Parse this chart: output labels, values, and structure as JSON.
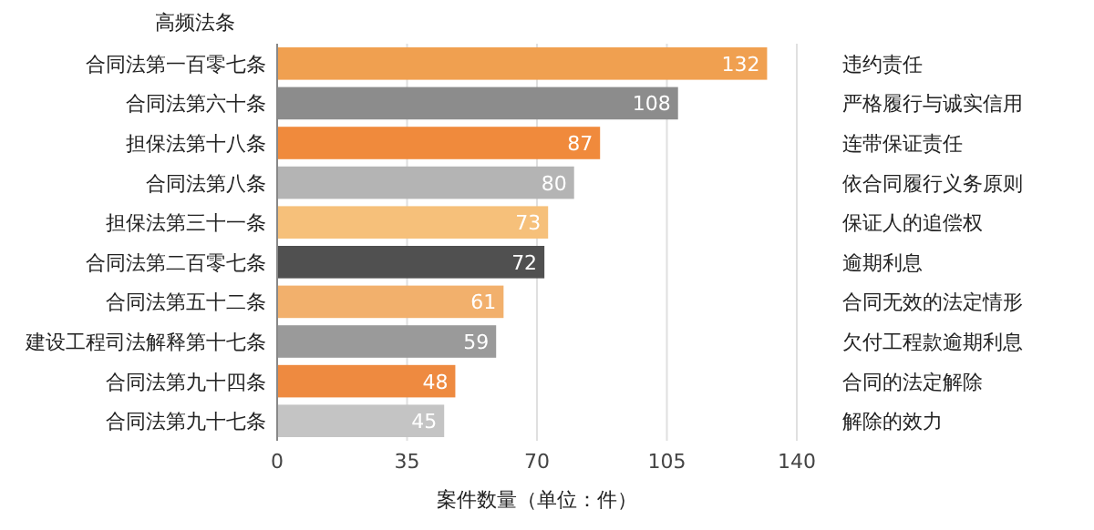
{
  "chart_data": {
    "type": "bar",
    "orientation": "horizontal",
    "ylabel": "高频法条",
    "xlabel": "案件数量（单位：件）",
    "categories": [
      "合同法第一百零七条",
      "合同法第六十条",
      "担保法第十八条",
      "合同法第八条",
      "担保法第三十一条",
      "合同法第二百零七条",
      "合同法第五十二条",
      "建设工程司法解释第十七条",
      "合同法第九十四条",
      "合同法第九十七条"
    ],
    "values": [
      132,
      108,
      87,
      80,
      73,
      72,
      61,
      59,
      48,
      45
    ],
    "colors": [
      "#f0a050",
      "#8c8c8c",
      "#f08a3c",
      "#b4b4b4",
      "#f6c07a",
      "#505050",
      "#f2b06c",
      "#9a9a9a",
      "#ee8a40",
      "#c4c4c4"
    ],
    "data_labels": true,
    "xlim": [
      0,
      140
    ],
    "xticks": [
      0,
      35,
      70,
      105,
      140
    ],
    "grid": "x",
    "annotations": [
      "违约责任",
      "严格履行与诚实信用",
      "连带保证责任",
      "依合同履行义务原则",
      "保证人的追偿权",
      "逾期利息",
      "合同无效的法定情形",
      "欠付工程款逾期利息",
      "合同的法定解除",
      "解除的效力"
    ]
  }
}
